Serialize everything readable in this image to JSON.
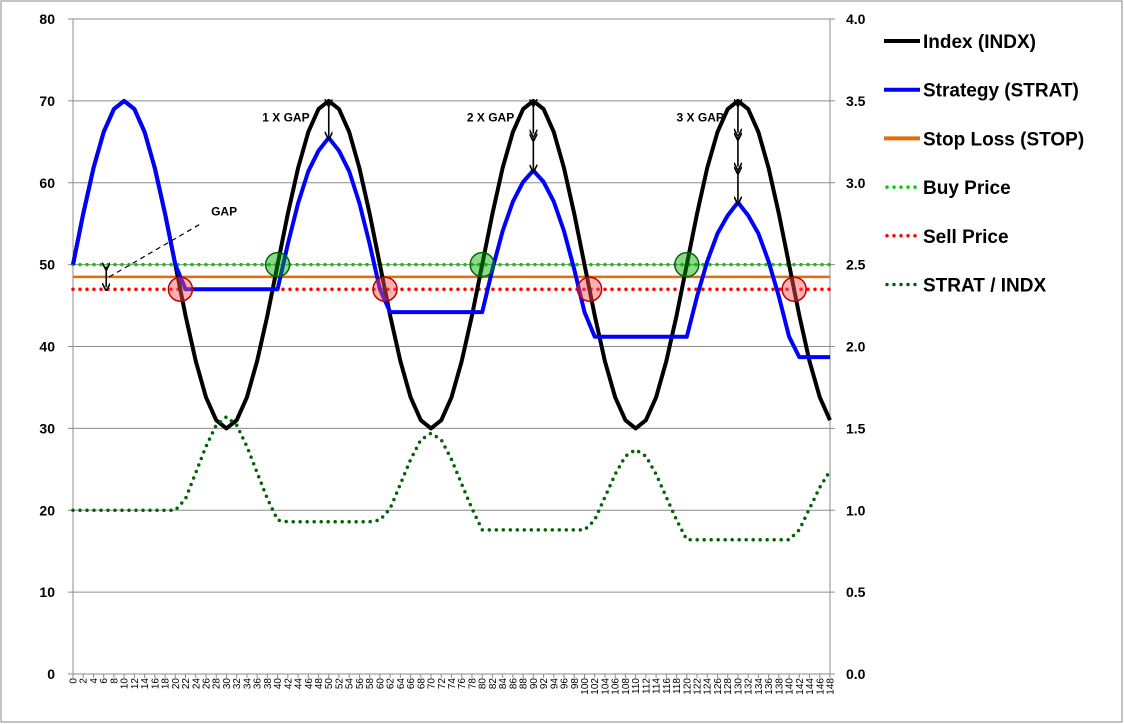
{
  "chart_data": {
    "type": "line",
    "title": "",
    "x": [
      0,
      2,
      4,
      6,
      8,
      10,
      12,
      14,
      16,
      18,
      20,
      22,
      24,
      26,
      28,
      30,
      32,
      34,
      36,
      38,
      40,
      42,
      44,
      46,
      48,
      50,
      52,
      54,
      56,
      58,
      60,
      62,
      64,
      66,
      68,
      70,
      72,
      74,
      76,
      78,
      80,
      82,
      84,
      86,
      88,
      90,
      92,
      94,
      96,
      98,
      100,
      102,
      104,
      106,
      108,
      110,
      112,
      114,
      116,
      118,
      120,
      122,
      124,
      126,
      128,
      130,
      132,
      134,
      136,
      138,
      140,
      142,
      144,
      146,
      148
    ],
    "xlim": [
      0,
      148
    ],
    "ylim_left": [
      0,
      80
    ],
    "ylim_right": [
      0,
      4
    ],
    "yticks_left": [
      "0",
      "10",
      "20",
      "30",
      "40",
      "50",
      "60",
      "70",
      "80"
    ],
    "yticks_right": [
      "0.0",
      "0.5",
      "1.0",
      "1.5",
      "2.0",
      "2.5",
      "3.0",
      "3.5",
      "4.0"
    ],
    "grid": true,
    "legend_position": "right",
    "legend": [
      "Index (INDX)",
      "Strategy (STRAT)",
      "Stop Loss (STOP)",
      "Buy Price",
      "Sell Price",
      "STRAT / INDX"
    ],
    "series": [
      {
        "name": "Index (INDX)",
        "axis": "left",
        "color": "#000000",
        "style": "solid",
        "values": [
          50,
          56.2,
          61.8,
          66.2,
          69,
          70,
          69,
          66.2,
          61.8,
          56.2,
          50,
          43.8,
          38.2,
          33.8,
          31,
          30,
          31,
          33.8,
          38.2,
          43.8,
          50,
          56.2,
          61.8,
          66.2,
          69,
          70,
          69,
          66.2,
          61.8,
          56.2,
          50,
          43.8,
          38.2,
          33.8,
          31,
          30,
          31,
          33.8,
          38.2,
          43.8,
          50,
          56.2,
          61.8,
          66.2,
          69,
          70,
          69,
          66.2,
          61.8,
          56.2,
          50,
          43.8,
          38.2,
          33.8,
          31,
          30,
          31,
          33.8,
          38.2,
          43.8,
          50,
          56.2,
          61.8,
          66.2,
          69,
          70,
          69,
          66.2,
          61.8,
          56.2,
          50,
          43.8,
          38.2,
          33.8,
          31
        ]
      },
      {
        "name": "Strategy (STRAT)",
        "axis": "left",
        "color": "#0000ff",
        "style": "solid",
        "values": [
          50,
          56.2,
          61.8,
          66.2,
          69,
          70,
          69,
          66.2,
          61.8,
          56.2,
          50,
          47,
          47,
          47,
          47,
          47,
          47,
          47,
          47,
          47,
          47,
          52.5,
          57.5,
          61.4,
          63.9,
          65.5,
          63.9,
          61.4,
          57.5,
          52.5,
          47,
          44.2,
          44.2,
          44.2,
          44.2,
          44.2,
          44.2,
          44.2,
          44.2,
          44.2,
          44.2,
          49.4,
          54.1,
          57.7,
          60.1,
          61.5,
          60.1,
          57.7,
          54.1,
          49.4,
          44.2,
          41.2,
          41.2,
          41.2,
          41.2,
          41.2,
          41.2,
          41.2,
          41.2,
          41.2,
          41.2,
          46.1,
          50.4,
          53.8,
          56,
          57.6,
          56,
          53.8,
          50.4,
          46.1,
          41.2,
          38.7,
          38.7,
          38.7,
          38.7
        ]
      },
      {
        "name": "Stop Loss (STOP)",
        "axis": "left",
        "color": "#e46c0a",
        "style": "solid",
        "value": 48.5
      },
      {
        "name": "Buy Price",
        "axis": "left",
        "color": "#00cc00",
        "style": "dotted",
        "value": 50
      },
      {
        "name": "Sell Price",
        "axis": "left",
        "color": "#ff0000",
        "style": "dotted",
        "value": 47
      },
      {
        "name": "STRAT / INDX",
        "axis": "right",
        "color": "#006400",
        "style": "dotted",
        "values": [
          1,
          1,
          1,
          1,
          1,
          1,
          1,
          1,
          1,
          1,
          1,
          1.07,
          1.23,
          1.39,
          1.52,
          1.57,
          1.52,
          1.39,
          1.23,
          1.07,
          0.94,
          0.93,
          0.93,
          0.93,
          0.93,
          0.93,
          0.93,
          0.93,
          0.93,
          0.93,
          0.94,
          1.01,
          1.16,
          1.31,
          1.43,
          1.47,
          1.43,
          1.31,
          1.16,
          1.01,
          0.88,
          0.88,
          0.88,
          0.88,
          0.88,
          0.88,
          0.88,
          0.88,
          0.88,
          0.88,
          0.88,
          0.94,
          1.08,
          1.22,
          1.33,
          1.37,
          1.33,
          1.22,
          1.08,
          0.94,
          0.82,
          0.82,
          0.82,
          0.82,
          0.82,
          0.82,
          0.82,
          0.82,
          0.82,
          0.82,
          0.82,
          0.88,
          1.01,
          1.14,
          1.24
        ]
      }
    ],
    "buy_markers_x": [
      40,
      80,
      120
    ],
    "sell_markers_x": [
      21,
      61,
      101,
      141
    ],
    "annotations": [
      {
        "text": "GAP",
        "x": 27,
        "y": 56
      },
      {
        "text": "1 X GAP",
        "x": 37,
        "y": 67.5
      },
      {
        "text": "2 X GAP",
        "x": 77,
        "y": 67.5
      },
      {
        "text": "3 X GAP",
        "x": 118,
        "y": 67.5
      }
    ],
    "gap_arrows": [
      {
        "x": 6.5,
        "from": 47,
        "to": 50,
        "count": 1
      },
      {
        "x": 50,
        "from": 65.5,
        "to": 70,
        "count": 1
      },
      {
        "x": 90,
        "from": 61.5,
        "to": 70,
        "count": 2
      },
      {
        "x": 130,
        "from": 57.6,
        "to": 70,
        "count": 3
      }
    ]
  }
}
